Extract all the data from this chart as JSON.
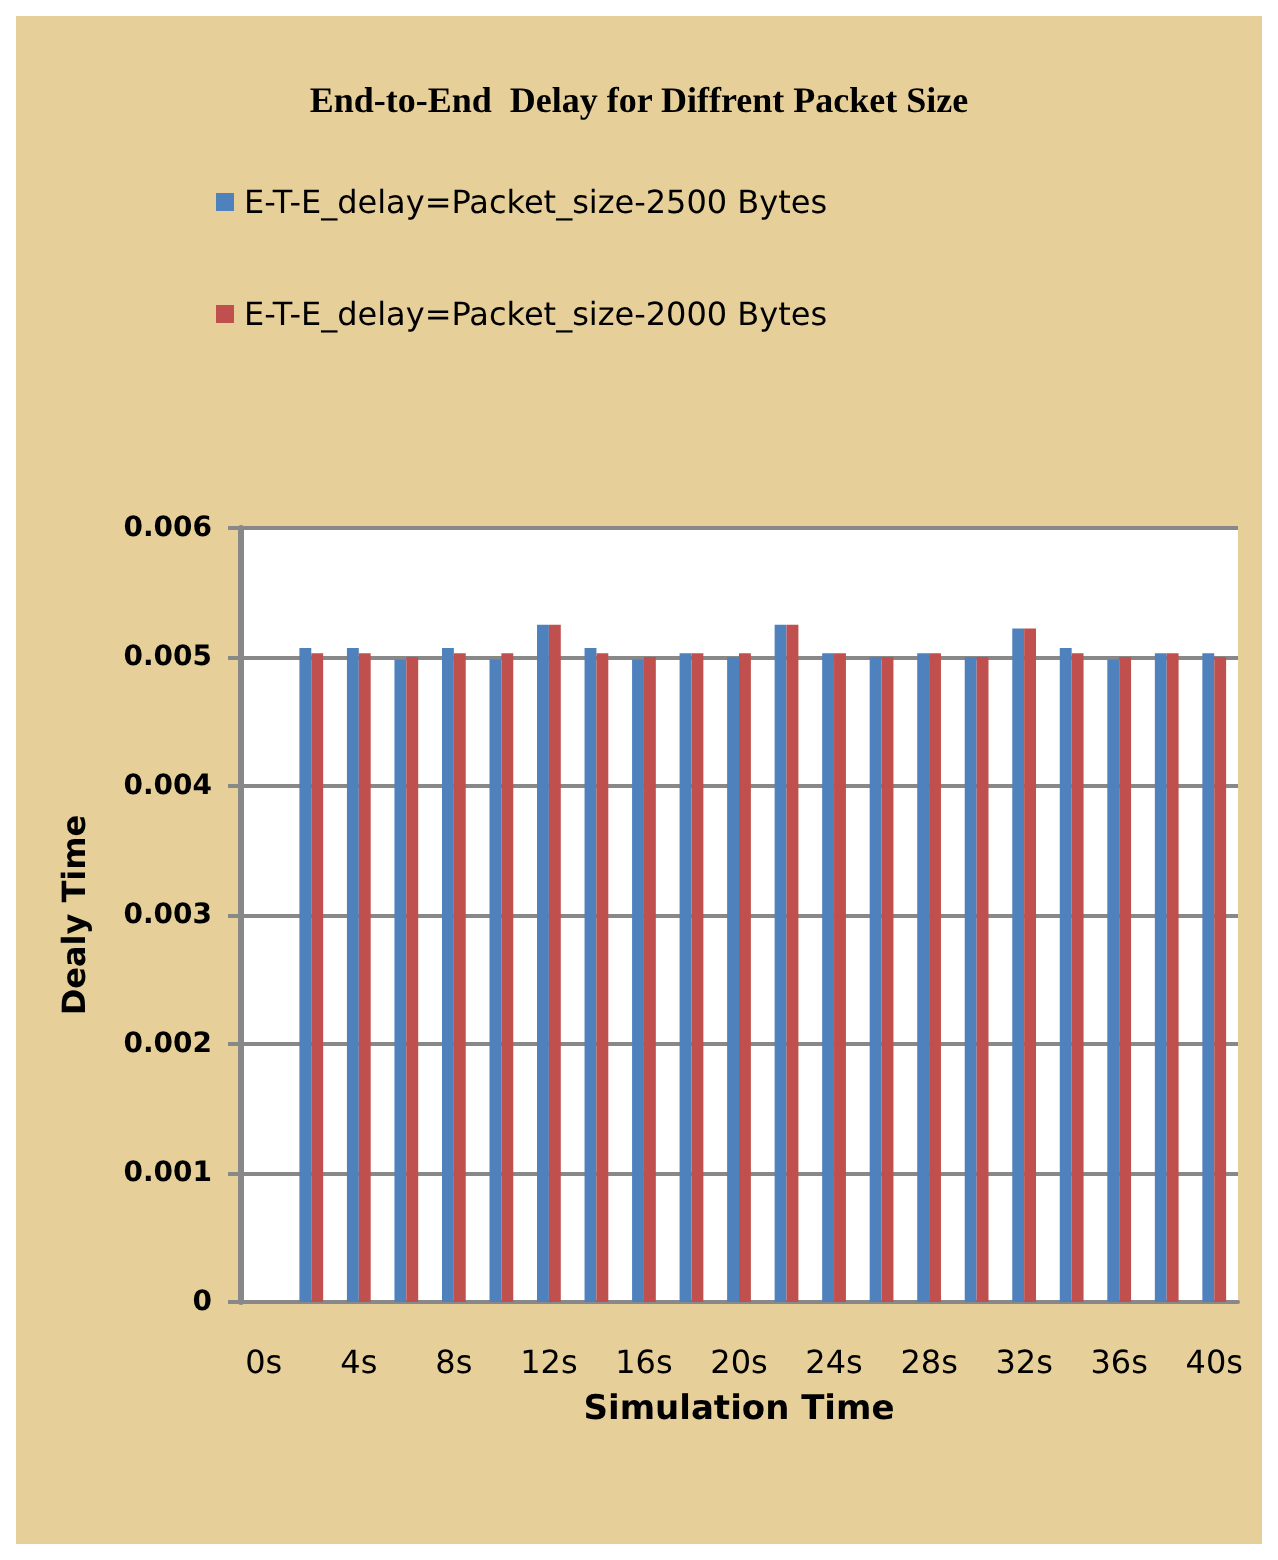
{
  "chart_data": {
    "type": "bar",
    "title": "End-to-End  Delay for Diffrent Packet Size",
    "xlabel": "Simulation Time",
    "ylabel": "Dealy Time",
    "categories": [
      "0s",
      null,
      "4s",
      null,
      "8s",
      null,
      "12s",
      null,
      "16s",
      null,
      "20s",
      null,
      "24s",
      null,
      "28s",
      null,
      "32s",
      null,
      "36s",
      null,
      "40s"
    ],
    "series": [
      {
        "name": "E-T-E_delay=Packet_size-2500 Bytes",
        "color": "#4f81bd",
        "values": [
          null,
          0.00507,
          0.00507,
          0.00498,
          0.00507,
          0.00498,
          0.00525,
          0.00507,
          0.00498,
          0.00503,
          0.005,
          0.00525,
          0.00503,
          0.005,
          0.00503,
          0.005,
          0.00522,
          0.00507,
          0.00498,
          0.00503,
          0.00503
        ]
      },
      {
        "name": "E-T-E_delay=Packet_size-2000 Bytes",
        "color": "#c0504d",
        "values": [
          null,
          0.00503,
          0.00503,
          0.005,
          0.00503,
          0.00503,
          0.00525,
          0.00503,
          0.005,
          0.00503,
          0.00503,
          0.00525,
          0.00503,
          0.005,
          0.00503,
          0.005,
          0.00522,
          0.00503,
          0.005,
          0.00503,
          0.005
        ]
      }
    ],
    "ylim": [
      0,
      0.006
    ],
    "yticks": [
      0,
      0.001,
      0.002,
      0.003,
      0.004,
      0.005,
      0.006
    ],
    "grid": "y",
    "legend": "top"
  }
}
